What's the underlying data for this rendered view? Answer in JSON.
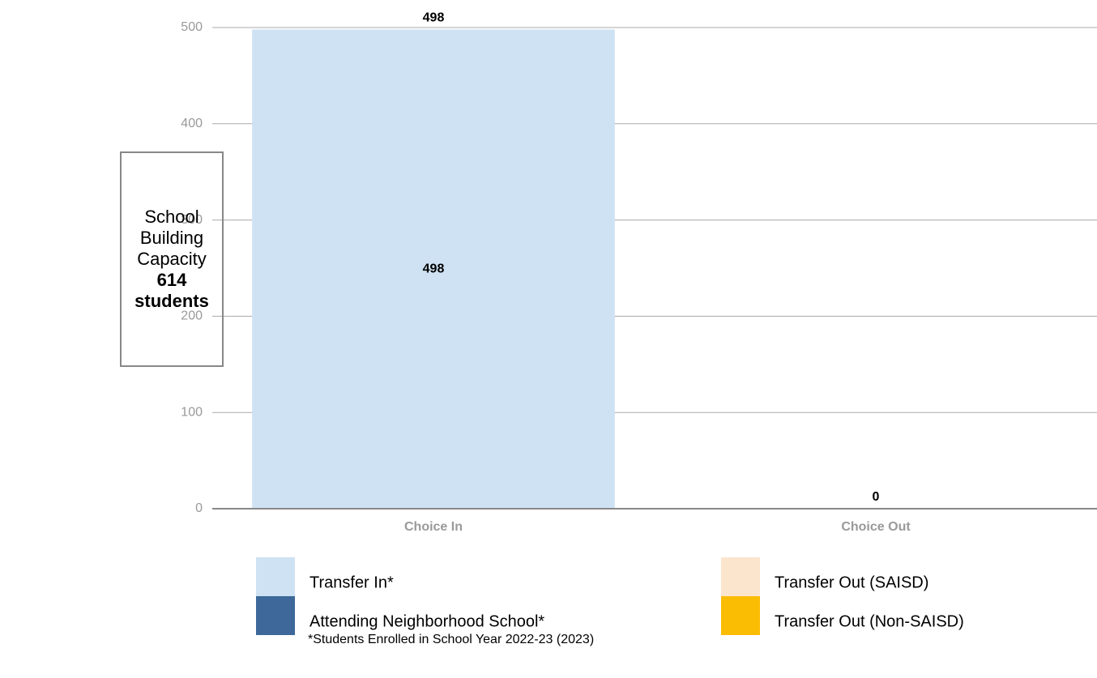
{
  "chart_data": {
    "type": "stacked_bar",
    "categories": [
      "Choice In",
      "Choice Out"
    ],
    "series": [
      {
        "name": "Transfer In*",
        "color": "#cfe2f3",
        "values": [
          498,
          null
        ]
      },
      {
        "name": "Attending Neighborhood School*",
        "color": "#3d6899",
        "values": [
          0,
          null
        ]
      },
      {
        "name": "Transfer Out (SAISD)",
        "color": "#fce5cd",
        "values": [
          null,
          0
        ]
      },
      {
        "name": "Transfer Out (Non-SAISD)",
        "color": "#fbbc04",
        "values": [
          null,
          0
        ]
      }
    ],
    "totals": [
      498,
      0
    ],
    "ylim": [
      0,
      500
    ],
    "yticks": [
      0,
      100,
      200,
      300,
      400,
      500
    ],
    "grid": true,
    "footnote": "*Students Enrolled in School Year 2022-23 (2023)",
    "capacity_box": {
      "label": "School Building Capacity",
      "value": 614,
      "unit": "students"
    }
  }
}
